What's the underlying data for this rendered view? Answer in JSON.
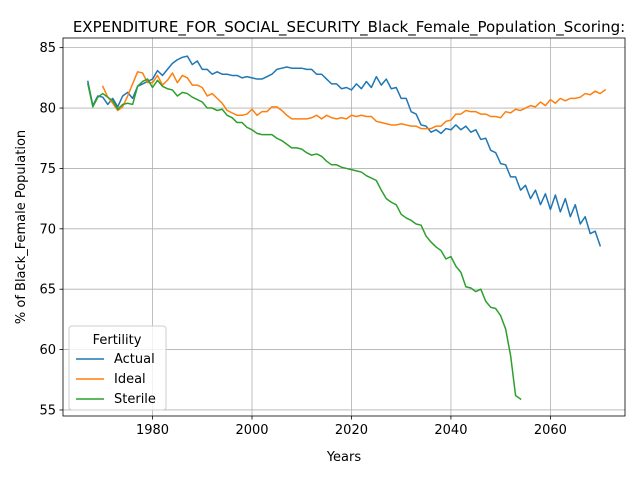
{
  "chart_data": {
    "type": "line",
    "title": "EXPENDITURE_FOR_SOCIAL_SECURITY_Black_Female_Population_Scoring:",
    "xlabel": "Years",
    "ylabel": "% of Black_Female Population",
    "xlim": [
      1962,
      2075
    ],
    "ylim": [
      54.5,
      85.8
    ],
    "xticks": [
      1980,
      2000,
      2020,
      2040,
      2060
    ],
    "yticks": [
      55,
      60,
      65,
      70,
      75,
      80,
      85
    ],
    "grid": true,
    "legend": {
      "title": "Fertility",
      "position": "lower-left"
    },
    "series": [
      {
        "name": "Actual",
        "color": "#1f77b4",
        "points": [
          [
            1967,
            82.2
          ],
          [
            1968,
            80.2
          ],
          [
            1969,
            81.0
          ],
          [
            1970,
            80.9
          ],
          [
            1971,
            80.3
          ],
          [
            1972,
            80.8
          ],
          [
            1973,
            80.1
          ],
          [
            1974,
            81.0
          ],
          [
            1975,
            81.3
          ],
          [
            1976,
            80.8
          ],
          [
            1977,
            81.8
          ],
          [
            1978,
            82.0
          ],
          [
            1979,
            82.2
          ],
          [
            1980,
            82.4
          ],
          [
            1981,
            83.1
          ],
          [
            1982,
            82.7
          ],
          [
            1983,
            83.2
          ],
          [
            1984,
            83.7
          ],
          [
            1985,
            84.0
          ],
          [
            1986,
            84.2
          ],
          [
            1987,
            84.3
          ],
          [
            1988,
            83.6
          ],
          [
            1989,
            83.9
          ],
          [
            1990,
            83.2
          ],
          [
            1991,
            83.2
          ],
          [
            1992,
            82.8
          ],
          [
            1993,
            83.0
          ],
          [
            1994,
            82.8
          ],
          [
            1995,
            82.8
          ],
          [
            1996,
            82.7
          ],
          [
            1997,
            82.7
          ],
          [
            1998,
            82.5
          ],
          [
            1999,
            82.6
          ],
          [
            2000,
            82.5
          ],
          [
            2001,
            82.4
          ],
          [
            2002,
            82.4
          ],
          [
            2003,
            82.6
          ],
          [
            2004,
            82.8
          ],
          [
            2005,
            83.2
          ],
          [
            2006,
            83.3
          ],
          [
            2007,
            83.4
          ],
          [
            2008,
            83.3
          ],
          [
            2009,
            83.3
          ],
          [
            2010,
            83.3
          ],
          [
            2011,
            83.2
          ],
          [
            2012,
            83.2
          ],
          [
            2013,
            82.8
          ],
          [
            2014,
            82.8
          ],
          [
            2015,
            82.4
          ],
          [
            2016,
            82.0
          ],
          [
            2017,
            82.0
          ],
          [
            2018,
            81.6
          ],
          [
            2019,
            81.7
          ],
          [
            2020,
            81.5
          ],
          [
            2021,
            82.0
          ],
          [
            2022,
            81.6
          ],
          [
            2023,
            82.2
          ],
          [
            2024,
            81.7
          ],
          [
            2025,
            82.6
          ],
          [
            2026,
            81.9
          ],
          [
            2027,
            82.4
          ],
          [
            2028,
            81.6
          ],
          [
            2029,
            81.7
          ],
          [
            2030,
            80.8
          ],
          [
            2031,
            80.8
          ],
          [
            2032,
            79.7
          ],
          [
            2033,
            79.5
          ],
          [
            2034,
            78.6
          ],
          [
            2035,
            78.5
          ],
          [
            2036,
            78.0
          ],
          [
            2037,
            78.2
          ],
          [
            2038,
            77.9
          ],
          [
            2039,
            78.3
          ],
          [
            2040,
            78.2
          ],
          [
            2041,
            78.6
          ],
          [
            2042,
            78.2
          ],
          [
            2043,
            78.5
          ],
          [
            2044,
            78.0
          ],
          [
            2045,
            78.2
          ],
          [
            2046,
            77.4
          ],
          [
            2047,
            77.5
          ],
          [
            2048,
            76.5
          ],
          [
            2049,
            76.3
          ],
          [
            2050,
            75.4
          ],
          [
            2051,
            75.3
          ],
          [
            2052,
            74.3
          ],
          [
            2053,
            74.3
          ],
          [
            2054,
            73.2
          ],
          [
            2055,
            73.6
          ],
          [
            2056,
            72.5
          ],
          [
            2057,
            73.2
          ],
          [
            2058,
            72.0
          ],
          [
            2059,
            72.9
          ],
          [
            2060,
            71.6
          ],
          [
            2061,
            72.8
          ],
          [
            2062,
            71.4
          ],
          [
            2063,
            72.5
          ],
          [
            2064,
            71.0
          ],
          [
            2065,
            72.0
          ],
          [
            2066,
            70.4
          ],
          [
            2067,
            71.0
          ],
          [
            2068,
            69.6
          ],
          [
            2069,
            69.8
          ],
          [
            2070,
            68.6
          ]
        ]
      },
      {
        "name": "Ideal",
        "color": "#ff7f0e",
        "points": [
          [
            1970,
            81.8
          ],
          [
            1971,
            80.9
          ],
          [
            1972,
            80.4
          ],
          [
            1973,
            79.8
          ],
          [
            1974,
            80.1
          ],
          [
            1975,
            81.0
          ],
          [
            1976,
            82.0
          ],
          [
            1977,
            83.0
          ],
          [
            1978,
            82.9
          ],
          [
            1979,
            82.1
          ],
          [
            1980,
            82.1
          ],
          [
            1981,
            82.7
          ],
          [
            1982,
            81.9
          ],
          [
            1983,
            82.3
          ],
          [
            1984,
            82.9
          ],
          [
            1985,
            82.1
          ],
          [
            1986,
            82.7
          ],
          [
            1987,
            82.5
          ],
          [
            1988,
            81.9
          ],
          [
            1989,
            81.9
          ],
          [
            1990,
            81.7
          ],
          [
            1991,
            81.0
          ],
          [
            1992,
            81.2
          ],
          [
            1993,
            80.8
          ],
          [
            1994,
            80.4
          ],
          [
            1995,
            79.8
          ],
          [
            1996,
            79.6
          ],
          [
            1997,
            79.4
          ],
          [
            1998,
            79.4
          ],
          [
            1999,
            79.5
          ],
          [
            2000,
            79.9
          ],
          [
            2001,
            79.4
          ],
          [
            2002,
            79.7
          ],
          [
            2003,
            79.7
          ],
          [
            2004,
            80.1
          ],
          [
            2005,
            80.1
          ],
          [
            2006,
            79.8
          ],
          [
            2007,
            79.4
          ],
          [
            2008,
            79.1
          ],
          [
            2009,
            79.1
          ],
          [
            2010,
            79.1
          ],
          [
            2011,
            79.1
          ],
          [
            2012,
            79.2
          ],
          [
            2013,
            79.4
          ],
          [
            2014,
            79.1
          ],
          [
            2015,
            79.4
          ],
          [
            2016,
            79.2
          ],
          [
            2017,
            79.1
          ],
          [
            2018,
            79.2
          ],
          [
            2019,
            79.1
          ],
          [
            2020,
            79.4
          ],
          [
            2021,
            79.3
          ],
          [
            2022,
            79.4
          ],
          [
            2023,
            79.3
          ],
          [
            2024,
            79.3
          ],
          [
            2025,
            78.9
          ],
          [
            2026,
            78.8
          ],
          [
            2027,
            78.7
          ],
          [
            2028,
            78.6
          ],
          [
            2029,
            78.6
          ],
          [
            2030,
            78.7
          ],
          [
            2031,
            78.6
          ],
          [
            2032,
            78.5
          ],
          [
            2033,
            78.5
          ],
          [
            2034,
            78.3
          ],
          [
            2035,
            78.3
          ],
          [
            2036,
            78.3
          ],
          [
            2037,
            78.5
          ],
          [
            2038,
            78.5
          ],
          [
            2039,
            78.9
          ],
          [
            2040,
            79.0
          ],
          [
            2041,
            79.5
          ],
          [
            2042,
            79.5
          ],
          [
            2043,
            79.8
          ],
          [
            2044,
            79.7
          ],
          [
            2045,
            79.7
          ],
          [
            2046,
            79.5
          ],
          [
            2047,
            79.5
          ],
          [
            2048,
            79.3
          ],
          [
            2049,
            79.3
          ],
          [
            2050,
            79.2
          ],
          [
            2051,
            79.7
          ],
          [
            2052,
            79.6
          ],
          [
            2053,
            79.9
          ],
          [
            2054,
            79.8
          ],
          [
            2055,
            80.0
          ],
          [
            2056,
            80.2
          ],
          [
            2057,
            80.1
          ],
          [
            2058,
            80.5
          ],
          [
            2059,
            80.2
          ],
          [
            2060,
            80.7
          ],
          [
            2061,
            80.4
          ],
          [
            2062,
            80.8
          ],
          [
            2063,
            80.6
          ],
          [
            2064,
            80.8
          ],
          [
            2065,
            80.8
          ],
          [
            2066,
            80.9
          ],
          [
            2067,
            81.2
          ],
          [
            2068,
            81.1
          ],
          [
            2069,
            81.4
          ],
          [
            2070,
            81.2
          ],
          [
            2071,
            81.5
          ]
        ]
      },
      {
        "name": "Sterile",
        "color": "#2ca02c",
        "points": [
          [
            1967,
            82.0
          ],
          [
            1968,
            80.1
          ],
          [
            1969,
            80.9
          ],
          [
            1970,
            81.2
          ],
          [
            1971,
            80.9
          ],
          [
            1972,
            80.6
          ],
          [
            1973,
            79.9
          ],
          [
            1974,
            80.3
          ],
          [
            1975,
            80.4
          ],
          [
            1976,
            80.3
          ],
          [
            1977,
            81.8
          ],
          [
            1978,
            82.2
          ],
          [
            1979,
            82.4
          ],
          [
            1980,
            81.7
          ],
          [
            1981,
            82.3
          ],
          [
            1982,
            81.8
          ],
          [
            1983,
            81.6
          ],
          [
            1984,
            81.5
          ],
          [
            1985,
            81.0
          ],
          [
            1986,
            81.3
          ],
          [
            1987,
            81.2
          ],
          [
            1988,
            80.9
          ],
          [
            1989,
            80.7
          ],
          [
            1990,
            80.5
          ],
          [
            1991,
            80.0
          ],
          [
            1992,
            80.0
          ],
          [
            1993,
            79.8
          ],
          [
            1994,
            79.9
          ],
          [
            1995,
            79.4
          ],
          [
            1996,
            79.2
          ],
          [
            1997,
            78.8
          ],
          [
            1998,
            78.8
          ],
          [
            1999,
            78.4
          ],
          [
            2000,
            78.2
          ],
          [
            2001,
            77.9
          ],
          [
            2002,
            77.8
          ],
          [
            2003,
            77.8
          ],
          [
            2004,
            77.8
          ],
          [
            2005,
            77.5
          ],
          [
            2006,
            77.3
          ],
          [
            2007,
            77.0
          ],
          [
            2008,
            76.7
          ],
          [
            2009,
            76.7
          ],
          [
            2010,
            76.6
          ],
          [
            2011,
            76.3
          ],
          [
            2012,
            76.1
          ],
          [
            2013,
            76.2
          ],
          [
            2014,
            76.0
          ],
          [
            2015,
            75.6
          ],
          [
            2016,
            75.3
          ],
          [
            2017,
            75.3
          ],
          [
            2018,
            75.1
          ],
          [
            2019,
            75.0
          ],
          [
            2020,
            74.9
          ],
          [
            2021,
            74.8
          ],
          [
            2022,
            74.7
          ],
          [
            2023,
            74.4
          ],
          [
            2024,
            74.2
          ],
          [
            2025,
            74.0
          ],
          [
            2026,
            73.2
          ],
          [
            2027,
            72.5
          ],
          [
            2028,
            72.2
          ],
          [
            2029,
            72.0
          ],
          [
            2030,
            71.2
          ],
          [
            2031,
            70.9
          ],
          [
            2032,
            70.7
          ],
          [
            2033,
            70.4
          ],
          [
            2034,
            70.3
          ],
          [
            2035,
            69.4
          ],
          [
            2036,
            68.9
          ],
          [
            2037,
            68.5
          ],
          [
            2038,
            68.2
          ],
          [
            2039,
            67.5
          ],
          [
            2040,
            67.7
          ],
          [
            2041,
            66.9
          ],
          [
            2042,
            66.4
          ],
          [
            2043,
            65.2
          ],
          [
            2044,
            65.1
          ],
          [
            2045,
            64.8
          ],
          [
            2046,
            65.0
          ],
          [
            2047,
            64.0
          ],
          [
            2048,
            63.5
          ],
          [
            2049,
            63.4
          ],
          [
            2050,
            62.8
          ],
          [
            2051,
            61.7
          ],
          [
            2052,
            59.5
          ],
          [
            2053,
            56.2
          ],
          [
            2054,
            55.9
          ]
        ]
      }
    ]
  }
}
